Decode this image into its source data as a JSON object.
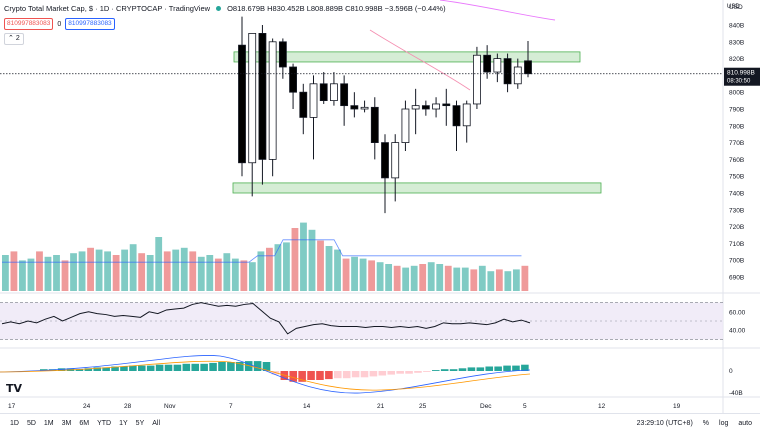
{
  "header": {
    "title": "Crypto Total Market Cap, $ · 1D · CRYPTOCAP · TradingView",
    "ohlc": "O818.679B H830.452B L808.889B C810.998B −3.596B (−0.44%)",
    "sell_price": "810997883083",
    "spread": "0",
    "buy_price": "810997883083",
    "indicator_count": "2",
    "collapse_icon": "chevron-up-icon"
  },
  "price_axis": {
    "currency": "USD",
    "current_price": "810.998B",
    "countdown": "08:30:50",
    "ticks": [
      "840B",
      "830B",
      "820B",
      "810B",
      "800B",
      "790B",
      "780B",
      "770B",
      "760B",
      "750B",
      "740B",
      "730B",
      "720B",
      "710B",
      "700B",
      "690B"
    ]
  },
  "rsi_axis": {
    "ticks": [
      "60.00",
      "40.00"
    ]
  },
  "macd_axis": {
    "ticks": [
      "0",
      "-40B"
    ]
  },
  "time_axis": {
    "labels": [
      "17",
      "24",
      "28",
      "Nov",
      "7",
      "14",
      "21",
      "25",
      "Dec",
      "5",
      "12",
      "19"
    ]
  },
  "bottom_bar": {
    "timeframes": [
      "1D",
      "5D",
      "1M",
      "3M",
      "6M",
      "YTD",
      "1Y",
      "5Y",
      "All"
    ],
    "calendar_icon": "calendar-icon",
    "clock": "23:29:10 (UTC+8)",
    "percent": "%",
    "log": "log",
    "auto": "auto"
  },
  "colors": {
    "up": "#26a69a",
    "down": "#000000",
    "vol_up": "#80cbc4",
    "vol_down": "#ef9a9a",
    "zone": "#b2dfb2"
  },
  "chart_data": {
    "type": "candlestick",
    "price_unit": "billion USD",
    "candles": [
      {
        "o": 828,
        "h": 845,
        "l": 750,
        "c": 758
      },
      {
        "o": 758,
        "h": 835,
        "l": 738,
        "c": 835
      },
      {
        "o": 835,
        "h": 840,
        "l": 745,
        "c": 760
      },
      {
        "o": 760,
        "h": 832,
        "l": 750,
        "c": 830
      },
      {
        "o": 830,
        "h": 832,
        "l": 808,
        "c": 815
      },
      {
        "o": 815,
        "h": 817,
        "l": 790,
        "c": 800
      },
      {
        "o": 800,
        "h": 805,
        "l": 775,
        "c": 785
      },
      {
        "o": 785,
        "h": 810,
        "l": 760,
        "c": 805
      },
      {
        "o": 805,
        "h": 812,
        "l": 793,
        "c": 795
      },
      {
        "o": 795,
        "h": 812,
        "l": 792,
        "c": 805
      },
      {
        "o": 805,
        "h": 810,
        "l": 780,
        "c": 792
      },
      {
        "o": 792,
        "h": 800,
        "l": 785,
        "c": 790
      },
      {
        "o": 790,
        "h": 795,
        "l": 788,
        "c": 791
      },
      {
        "o": 791,
        "h": 797,
        "l": 760,
        "c": 770
      },
      {
        "o": 770,
        "h": 775,
        "l": 728,
        "c": 749
      },
      {
        "o": 749,
        "h": 775,
        "l": 735,
        "c": 770
      },
      {
        "o": 770,
        "h": 795,
        "l": 765,
        "c": 790
      },
      {
        "o": 790,
        "h": 802,
        "l": 775,
        "c": 792
      },
      {
        "o": 792,
        "h": 795,
        "l": 786,
        "c": 790
      },
      {
        "o": 790,
        "h": 797,
        "l": 785,
        "c": 793
      },
      {
        "o": 793,
        "h": 802,
        "l": 780,
        "c": 792
      },
      {
        "o": 792,
        "h": 795,
        "l": 765,
        "c": 780
      },
      {
        "o": 780,
        "h": 795,
        "l": 770,
        "c": 793
      },
      {
        "o": 793,
        "h": 827,
        "l": 790,
        "c": 822
      },
      {
        "o": 822,
        "h": 828,
        "l": 808,
        "c": 812
      },
      {
        "o": 812,
        "h": 823,
        "l": 806,
        "c": 820
      },
      {
        "o": 820,
        "h": 823,
        "l": 800,
        "c": 805
      },
      {
        "o": 805,
        "h": 820,
        "l": 802,
        "c": 815
      },
      {
        "o": 818.679,
        "h": 830.452,
        "l": 808.889,
        "c": 810.998
      }
    ],
    "volume": [
      20,
      22,
      17,
      18,
      22,
      19,
      20,
      17,
      21,
      22,
      24,
      23,
      22,
      20,
      23,
      26,
      21,
      20,
      30,
      22,
      23,
      24,
      22,
      19,
      20,
      18,
      21,
      18,
      17,
      16,
      22,
      24,
      26,
      27,
      35,
      38,
      34,
      28,
      25,
      23,
      18,
      19,
      18,
      17,
      16,
      15,
      14,
      13,
      14,
      15,
      16,
      15,
      14,
      13,
      13,
      12,
      14,
      11,
      12,
      11,
      12,
      14
    ],
    "volume_colors": "alternating",
    "rsi": [
      47,
      49,
      47,
      50,
      48,
      52,
      55,
      50,
      54,
      58,
      60,
      58,
      57,
      55,
      56,
      55,
      54,
      60,
      58,
      62,
      63,
      64,
      68,
      70,
      68,
      66,
      67,
      66,
      68,
      69,
      61,
      53,
      49,
      36,
      42,
      44,
      46,
      47,
      45,
      44,
      44,
      44,
      43,
      44,
      44,
      43,
      44,
      43,
      44,
      42,
      44,
      48,
      47,
      47,
      48,
      47,
      46,
      48,
      52,
      49,
      51,
      48
    ],
    "rsi_bands": [
      70,
      30
    ],
    "macd_hist": [
      2,
      2,
      3,
      3,
      2,
      3,
      4,
      4,
      5,
      5,
      6,
      6,
      6,
      7,
      7,
      7,
      8,
      8,
      8,
      9,
      10,
      10,
      10,
      11,
      11,
      10,
      -4,
      -10,
      -12,
      -12,
      -10,
      -10,
      -9,
      -8,
      -8,
      -7,
      -7,
      -6,
      -5,
      -4,
      -3,
      -3,
      -2,
      -1,
      1,
      2,
      2,
      3,
      4,
      4,
      5,
      5,
      6,
      6,
      7
    ],
    "zones": [
      {
        "from": 818,
        "to": 824
      },
      {
        "from": 740,
        "to": 746
      }
    ]
  }
}
